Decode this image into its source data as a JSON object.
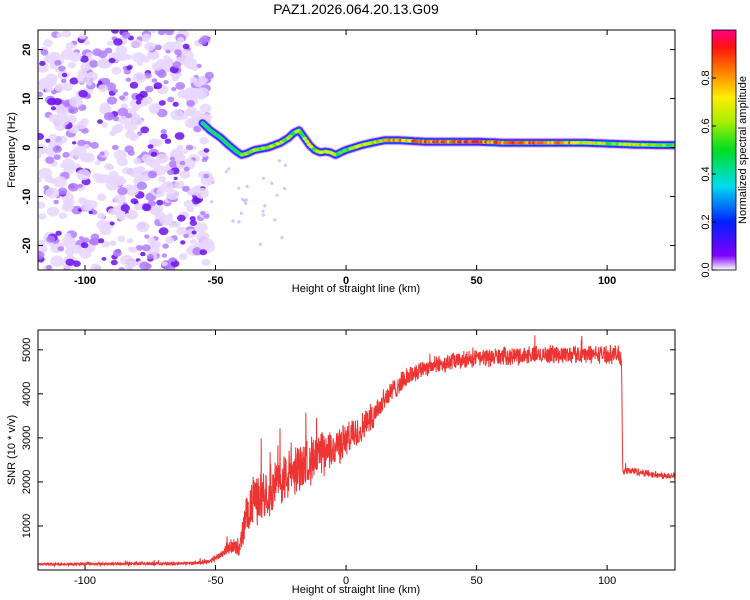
{
  "title": "PAZ1.2026.064.20.13.G09",
  "chart_data": [
    {
      "type": "heatmap",
      "name": "spectrogram",
      "xlabel": "Height of straight line (km)",
      "ylabel": "Frequency (Hz)",
      "xlim": [
        -118,
        126
      ],
      "ylim": [
        -25,
        24
      ],
      "xticks": [
        "-100",
        "-50",
        "0",
        "50",
        "100"
      ],
      "xtick_values": [
        -100,
        -50,
        0,
        50,
        100
      ],
      "yticks": [
        "20",
        "10",
        "0",
        "-10",
        "-20"
      ],
      "ytick_values": [
        20,
        10,
        0,
        -10,
        -20
      ],
      "colorbar": {
        "label": "Normalized spectral amplitude",
        "range": [
          0,
          1
        ],
        "ticks": [
          "0.0",
          "0.2",
          "0.4",
          "0.6",
          "0.8"
        ],
        "tick_values": [
          0,
          0.2,
          0.4,
          0.6,
          0.8
        ]
      },
      "noise_region_x": [
        -118,
        -52
      ],
      "ridge": {
        "x": [
          -55,
          -52,
          -48,
          -45,
          -42,
          -40,
          -38,
          -35,
          -30,
          -25,
          -22,
          -20,
          -18,
          -16,
          -14,
          -12,
          -10,
          -8,
          -6,
          -4,
          -2,
          0,
          3,
          6,
          10,
          15,
          20,
          30,
          40,
          50,
          60,
          70,
          80,
          90,
          100,
          110,
          120,
          126
        ],
        "y": [
          5,
          3.5,
          2,
          0.5,
          -0.8,
          -1.5,
          -1.2,
          -0.5,
          0,
          1,
          2,
          3,
          3.5,
          2,
          0.5,
          -0.5,
          -1,
          -0.8,
          -1,
          -1.5,
          -1,
          -0.5,
          0,
          0.5,
          1,
          1.5,
          1.5,
          1.2,
          1.2,
          1.2,
          1,
          1,
          1,
          1,
          0.8,
          0.6,
          0.5,
          0.5
        ]
      },
      "ridge_amplitude": {
        "x": [
          -55,
          -45,
          -40,
          -30,
          -20,
          -10,
          0,
          10,
          20,
          30,
          40,
          50,
          60,
          70,
          80,
          90,
          100,
          110,
          126
        ],
        "v": [
          0.2,
          0.4,
          0.65,
          0.7,
          0.65,
          0.7,
          0.6,
          0.75,
          0.85,
          0.9,
          0.95,
          0.98,
          0.9,
          0.95,
          0.9,
          0.8,
          0.6,
          0.75,
          0.55
        ]
      }
    },
    {
      "type": "line",
      "name": "snr",
      "xlabel": "Height of straight line (km)",
      "ylabel": "SNR (10 * v/v)",
      "xlim": [
        -118,
        126
      ],
      "ylim": [
        0,
        5450
      ],
      "xticks": [
        "-100",
        "-50",
        "0",
        "50",
        "100"
      ],
      "xtick_values": [
        -100,
        -50,
        0,
        50,
        100
      ],
      "yticks": [
        "1000",
        "2000",
        "3000",
        "4000",
        "5000"
      ],
      "ytick_values": [
        1000,
        2000,
        3000,
        4000,
        5000
      ],
      "color": "#ee3333",
      "envelope": {
        "x": [
          -118,
          -90,
          -60,
          -52,
          -48,
          -45,
          -43,
          -41,
          -39,
          -37,
          -35,
          -30,
          -25,
          -20,
          -15,
          -10,
          -5,
          0,
          5,
          10,
          15,
          20,
          25,
          30,
          40,
          50,
          60,
          70,
          80,
          90,
          100,
          104,
          105.5,
          106,
          110,
          120,
          126
        ],
        "mean": [
          130,
          140,
          150,
          200,
          350,
          520,
          550,
          450,
          1000,
          1400,
          1600,
          1800,
          2000,
          2250,
          2450,
          2600,
          2750,
          2950,
          3150,
          3500,
          3900,
          4200,
          4450,
          4600,
          4720,
          4800,
          4850,
          4880,
          4900,
          4900,
          4900,
          4900,
          4800,
          2250,
          2250,
          2150,
          2150
        ],
        "spread": [
          40,
          40,
          40,
          60,
          100,
          180,
          200,
          200,
          450,
          600,
          650,
          650,
          650,
          650,
          600,
          600,
          500,
          450,
          400,
          350,
          320,
          260,
          240,
          230,
          230,
          230,
          230,
          230,
          230,
          230,
          230,
          230,
          230,
          100,
          100,
          90,
          90
        ]
      }
    }
  ]
}
